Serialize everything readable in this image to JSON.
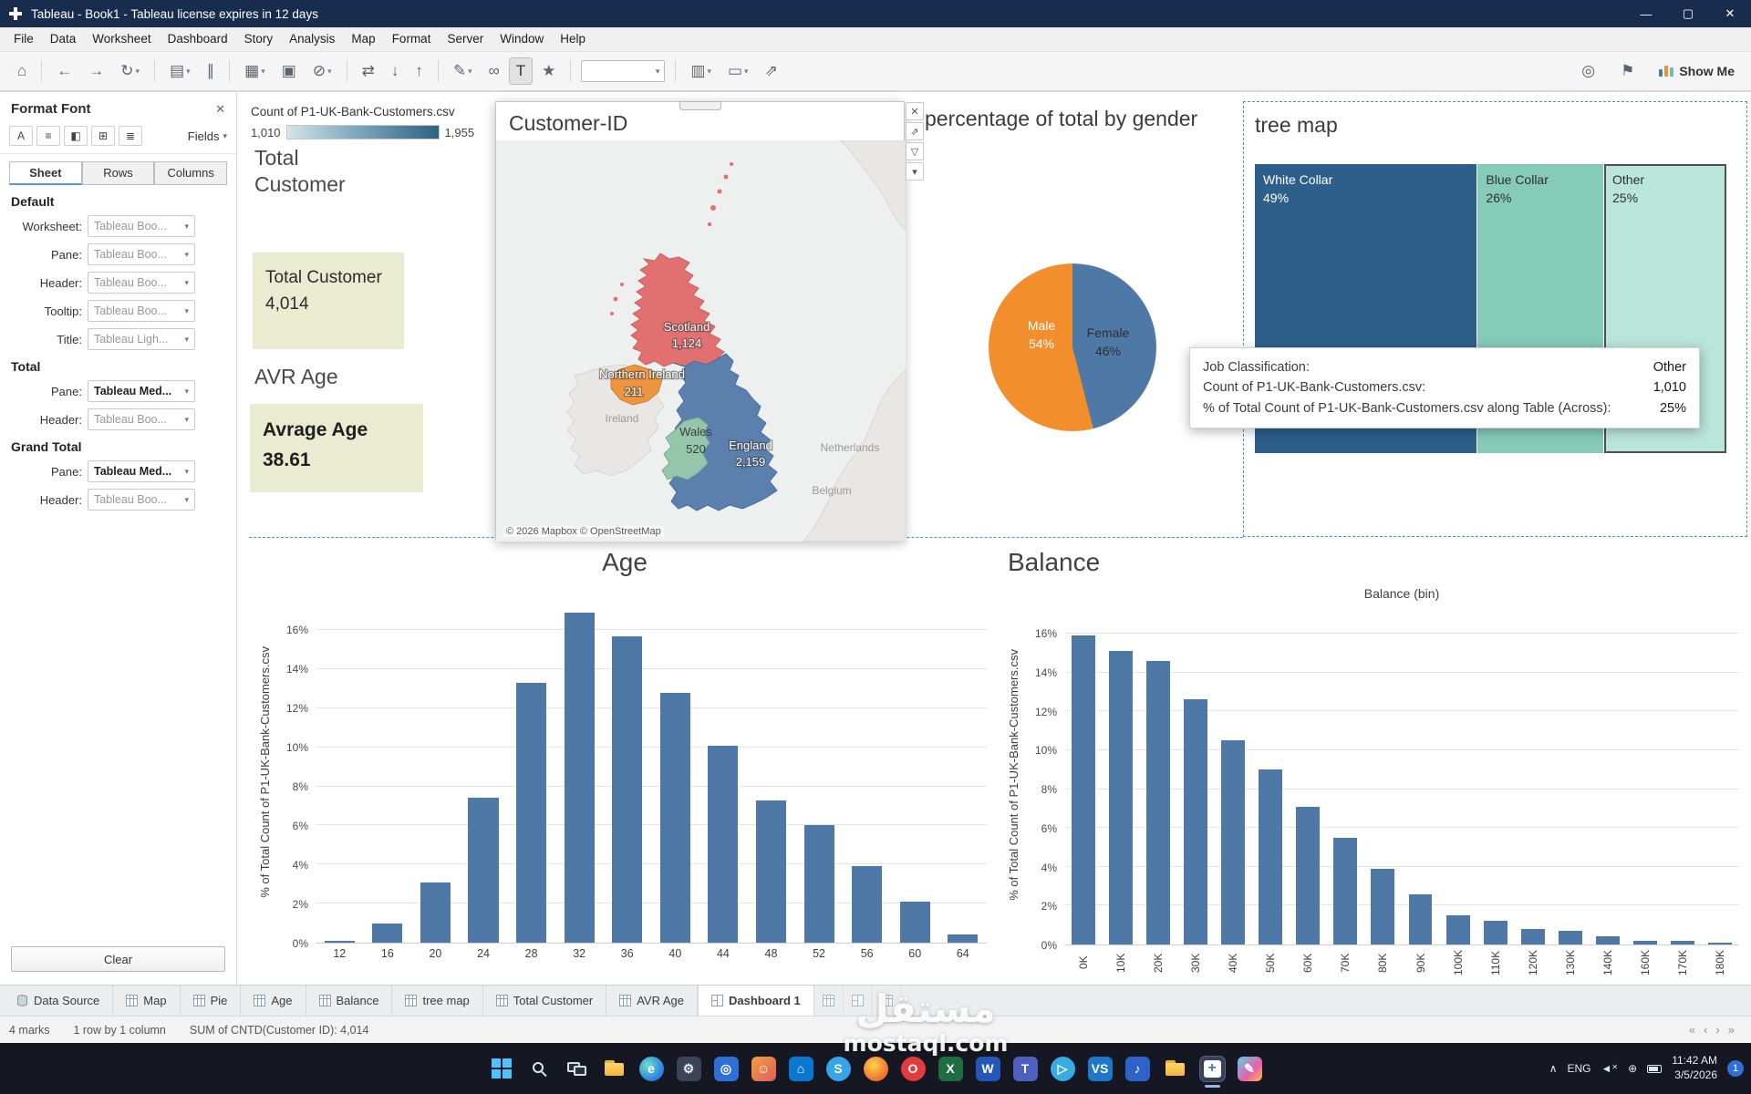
{
  "window": {
    "title": "Tableau - Book1 - Tableau license expires in 12 days"
  },
  "menu": {
    "items": [
      "File",
      "Data",
      "Worksheet",
      "Dashboard",
      "Story",
      "Analysis",
      "Map",
      "Format",
      "Server",
      "Window",
      "Help"
    ]
  },
  "toolbar": {
    "show_me_label": "Show Me",
    "icons": [
      {
        "name": "home",
        "glyph": "⌂"
      },
      {
        "sep": true
      },
      {
        "name": "undo",
        "glyph": "←"
      },
      {
        "name": "redo",
        "glyph": "→"
      },
      {
        "name": "refresh",
        "glyph": "↻",
        "caret": true
      },
      {
        "sep": true
      },
      {
        "name": "new-datasource",
        "glyph": "▤",
        "caret": true
      },
      {
        "name": "pause-updates",
        "glyph": "∥"
      },
      {
        "sep": true
      },
      {
        "name": "new-worksheet",
        "glyph": "▦",
        "caret": true
      },
      {
        "name": "duplicate-sheet",
        "glyph": "▣"
      },
      {
        "name": "clear-sheet",
        "glyph": "⊘",
        "caret": true
      },
      {
        "sep": true
      },
      {
        "name": "swap-rows-columns",
        "glyph": "⇄"
      },
      {
        "name": "sort-ascending",
        "glyph": "↓"
      },
      {
        "name": "sort-descending",
        "glyph": "↑"
      },
      {
        "sep": true
      },
      {
        "name": "highlight",
        "glyph": "✎",
        "caret": true
      },
      {
        "name": "group-members",
        "glyph": "∞"
      },
      {
        "name": "text-label",
        "glyph": "T",
        "active": true
      },
      {
        "name": "ask-data",
        "glyph": "★"
      },
      {
        "sep": true
      },
      {
        "name": "fit-selector",
        "combo": true
      },
      {
        "sep": true
      },
      {
        "name": "show-mark-labels",
        "glyph": "▥",
        "caret": true
      },
      {
        "name": "presentation-mode",
        "glyph": "▭",
        "caret": true
      },
      {
        "name": "share-workbook",
        "glyph": "⇗"
      }
    ],
    "right_icons": [
      {
        "name": "data-guide",
        "glyph": "◎"
      },
      {
        "name": "flag",
        "glyph": "⚑"
      }
    ]
  },
  "format_panel": {
    "title": "Format Font",
    "fields_label": "Fields",
    "tools": [
      {
        "name": "font-button",
        "glyph": "A"
      },
      {
        "name": "alignment-button",
        "glyph": "≡"
      },
      {
        "name": "shading-button",
        "glyph": "◧"
      },
      {
        "name": "borders-button",
        "glyph": "⊞"
      },
      {
        "name": "lines-button",
        "glyph": "≣"
      }
    ],
    "tabs": {
      "sheet": "Sheet",
      "rows": "Rows",
      "columns": "Columns"
    },
    "default_section": {
      "title": "Default",
      "rows": [
        {
          "label": "Worksheet:",
          "value": "Tableau Boo...",
          "emph": false
        },
        {
          "label": "Pane:",
          "value": "Tableau Boo...",
          "emph": false
        },
        {
          "label": "Header:",
          "value": "Tableau Boo...",
          "emph": false
        },
        {
          "label": "Tooltip:",
          "value": "Tableau Boo...",
          "emph": false
        },
        {
          "label": "Title:",
          "value": "Tableau Ligh...",
          "emph": false
        }
      ]
    },
    "total_section": {
      "title": "Total",
      "rows": [
        {
          "label": "Pane:",
          "value": "Tableau Med...",
          "emph": true
        },
        {
          "label": "Header:",
          "value": "Tableau Boo...",
          "emph": false
        }
      ]
    },
    "grand_total_section": {
      "title": "Grand Total",
      "rows": [
        {
          "label": "Pane:",
          "value": "Tableau Med...",
          "emph": true
        },
        {
          "label": "Header:",
          "value": "Tableau Boo...",
          "emph": false
        }
      ]
    },
    "clear_label": "Clear"
  },
  "dashboard": {
    "legend": {
      "title": "Count of P1-UK-Bank-Customers.csv",
      "min": "1,010",
      "max": "1,955"
    },
    "kpi_total": {
      "heading": "Total Customer",
      "label": "Total Customer",
      "value": "4,014"
    },
    "kpi_age": {
      "heading": "AVR Age",
      "label": "Avrage Age",
      "value": "38.61"
    },
    "map": {
      "title": "Customer-ID",
      "attribution": "© 2026 Mapbox © OpenStreetMap",
      "regions": [
        {
          "name": "Scotland",
          "value": "1,124"
        },
        {
          "name": "Northern Ireland",
          "value": "211"
        },
        {
          "name": "Wales",
          "value": "520"
        },
        {
          "name": "England",
          "value": "2,159"
        }
      ],
      "context_labels": [
        "Ireland",
        "Netherlands",
        "Belgium"
      ]
    },
    "pie": {
      "title": "percentage of total by gender",
      "slices": [
        {
          "label": "Male",
          "pct": "54%",
          "color": "#f28e2b"
        },
        {
          "label": "Female",
          "pct": "46%",
          "color": "#4e79a7"
        }
      ]
    },
    "treemap": {
      "title": "tree map",
      "items": [
        {
          "label": "White Collar",
          "pct": "49%",
          "share": 49,
          "color": "#2e5f8a",
          "text_color": "#ffffff",
          "highlighted": false
        },
        {
          "label": "Blue Collar",
          "pct": "26%",
          "share": 26,
          "color": "#85cbb8",
          "text_color": "#2f2f2f",
          "highlighted": false
        },
        {
          "label": "Other",
          "pct": "25%",
          "share": 25,
          "color": "#bae5da",
          "text_color": "#2f2f2f",
          "highlighted": true
        }
      ]
    },
    "tooltip": {
      "rows": [
        {
          "label": "Job Classification:",
          "value": "Other"
        },
        {
          "label": "Count of P1-UK-Bank-Customers.csv:",
          "value": "1,010"
        },
        {
          "label": "% of Total Count of P1-UK-Bank-Customers.csv along Table (Across):",
          "value": "25%"
        }
      ]
    }
  },
  "chart_data": [
    {
      "type": "bar",
      "title": "Age",
      "xlabel": "",
      "ylabel": "% of Total Count of P1-UK-Bank-Customers.csv",
      "categories": [
        "12",
        "16",
        "20",
        "24",
        "28",
        "32",
        "36",
        "40",
        "44",
        "48",
        "52",
        "56",
        "60",
        "64"
      ],
      "values": [
        0.1,
        1.0,
        3.1,
        7.4,
        13.3,
        16.9,
        15.7,
        12.8,
        10.1,
        7.3,
        6.0,
        3.9,
        2.1,
        0.4
      ],
      "ylim": [
        0,
        16
      ],
      "ytick_step": 2,
      "bar_color": "#4e79a7",
      "grid": true
    },
    {
      "type": "bar",
      "title": "Balance",
      "xlabel": "Balance (bin)",
      "ylabel": "% of Total Count of P1-UK-Bank-Customers.csv",
      "categories": [
        "0K",
        "10K",
        "20K",
        "30K",
        "40K",
        "50K",
        "60K",
        "70K",
        "80K",
        "90K",
        "100K",
        "110K",
        "120K",
        "130K",
        "140K",
        "160K",
        "170K",
        "180K"
      ],
      "values": [
        15.9,
        15.1,
        14.6,
        12.6,
        10.5,
        9.0,
        7.1,
        5.5,
        3.9,
        2.6,
        1.5,
        1.2,
        0.8,
        0.7,
        0.4,
        0.2,
        0.2,
        0.1
      ],
      "ylim": [
        0,
        16
      ],
      "ytick_step": 2,
      "bar_color": "#4e79a7",
      "grid": true
    },
    {
      "type": "pie",
      "title": "percentage of total by gender",
      "labels": [
        "Male",
        "Female"
      ],
      "values": [
        54,
        46
      ],
      "colors": [
        "#f28e2b",
        "#4e79a7"
      ]
    },
    {
      "type": "treemap",
      "title": "tree map",
      "labels": [
        "White Collar",
        "Blue Collar",
        "Other"
      ],
      "values": [
        49,
        26,
        25
      ]
    }
  ],
  "sheet_tabs": {
    "data_source": "Data Source",
    "tabs": [
      "Map",
      "Pie",
      "Age",
      "Balance",
      "tree map",
      "Total Customer",
      "AVR Age"
    ],
    "active": "Dashboard 1"
  },
  "status_bar": {
    "marks": "4 marks",
    "dims": "1 row by 1 column",
    "agg": "SUM of CNTD(Customer ID): 4,014"
  },
  "taskbar": {
    "lang": "ENG",
    "time": "11:42 AM",
    "date": "3/5/2026",
    "badge": "1",
    "icons": [
      {
        "name": "start",
        "kind": "start"
      },
      {
        "name": "search",
        "kind": "search"
      },
      {
        "name": "task-view",
        "kind": "taskview"
      },
      {
        "name": "file-explorer",
        "kind": "folder"
      },
      {
        "name": "edge-browser",
        "kind": "round",
        "bg": "radial-gradient(circle at 35% 35%, #6ee0c8, #2b7de0 70%)",
        "glyph": "e",
        "fg": "#ffffff"
      },
      {
        "name": "settings",
        "bg": "#3c4356",
        "glyph": "⚙",
        "fg": "#e8ecf4"
      },
      {
        "name": "photos",
        "bg": "#2f6fd6",
        "glyph": "◎",
        "fg": "#ffffff"
      },
      {
        "name": "people",
        "bg": "linear-gradient(135deg,#f2a03d,#e05c5c)",
        "glyph": "☺",
        "fg": "#ffffff"
      },
      {
        "name": "microsoft-store",
        "bg": "#0b78d0",
        "glyph": "⌂",
        "fg": "#ffffff"
      },
      {
        "name": "skype",
        "kind": "round",
        "bg": "#37a5e8",
        "glyph": "S",
        "fg": "#ffffff"
      },
      {
        "name": "firefox",
        "kind": "round",
        "bg": "radial-gradient(circle at 40% 35%,#ffd54d,#f2742c 65%)",
        "glyph": "",
        "fg": "#ffffff"
      },
      {
        "name": "opera",
        "kind": "round",
        "bg": "#e23b3b",
        "glyph": "O",
        "fg": "#ffffff"
      },
      {
        "name": "excel",
        "bg": "#1e6e43",
        "glyph": "X",
        "fg": "#ffffff"
      },
      {
        "name": "word",
        "bg": "#2456b8",
        "glyph": "W",
        "fg": "#ffffff"
      },
      {
        "name": "teams",
        "bg": "#4e5fbf",
        "glyph": "T",
        "fg": "#ffffff"
      },
      {
        "name": "telegram",
        "kind": "round",
        "bg": "#35ade2",
        "glyph": "▷",
        "fg": "#ffffff"
      },
      {
        "name": "vscode",
        "bg": "#1e78c8",
        "glyph": "VS",
        "fg": "#ffffff"
      },
      {
        "name": "audio-player",
        "bg": "#2d63c8",
        "glyph": "♪",
        "fg": "#ffffff"
      },
      {
        "name": "downloads-folder",
        "kind": "folder"
      },
      {
        "name": "tableau",
        "kind": "tableau"
      },
      {
        "name": "paint",
        "bg": "linear-gradient(135deg,#5ad0f0,#e960a8 60%,#f5c04a)",
        "glyph": "✎",
        "fg": "#ffffff"
      }
    ]
  },
  "watermark": {
    "arabic": "مستقل",
    "latin": "mostaql.com"
  }
}
